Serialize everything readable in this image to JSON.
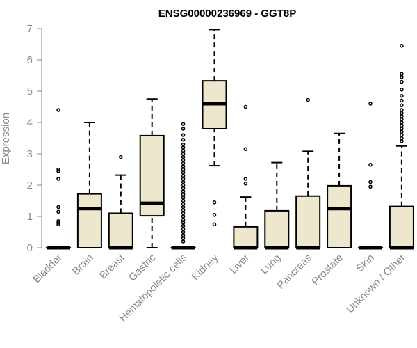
{
  "chart_data": {
    "type": "boxplot",
    "title": "ENSG00000236969 - GGT8P",
    "xlabel": "",
    "ylabel": "Expression",
    "ylim": [
      0,
      7
    ],
    "yticks": [
      "0",
      "1",
      "2",
      "3",
      "4",
      "5",
      "6",
      "7"
    ],
    "grid": false,
    "box_fill": "#EDE7CD",
    "categories": [
      "Bladder",
      "Brain",
      "Breast",
      "Gastric",
      "Hematopoietic cells",
      "Kidney",
      "Liver",
      "Lung",
      "Pancreas",
      "Prostate",
      "Skin",
      "Unknown / Other"
    ],
    "boxes": [
      {
        "min": 0,
        "q1": 0,
        "median": 0,
        "q3": 0,
        "max": 0,
        "outliers": [
          4.4,
          2.5,
          2.45,
          2.2,
          1.3,
          1.15,
          0.85,
          0.8,
          0.75
        ]
      },
      {
        "min": 0,
        "q1": 0,
        "median": 1.25,
        "q3": 1.72,
        "max": 4.0,
        "outliers": []
      },
      {
        "min": 0,
        "q1": 0,
        "median": 0,
        "q3": 1.1,
        "max": 2.32,
        "outliers": [
          2.9
        ]
      },
      {
        "min": 0,
        "q1": 1.02,
        "median": 1.42,
        "q3": 3.58,
        "max": 4.75,
        "outliers": []
      },
      {
        "min": 0,
        "q1": 0,
        "median": 0,
        "q3": 0,
        "max": 0,
        "outliers": [
          3.95,
          3.8,
          3.6,
          3.45,
          3.3,
          3.2,
          3.1,
          3.0,
          2.9,
          2.8,
          2.7,
          2.6,
          2.5,
          2.4,
          2.3,
          2.2,
          2.1,
          2.0,
          1.9,
          1.8,
          1.7,
          1.6,
          1.5,
          1.4,
          1.3,
          1.2,
          1.1,
          1.0,
          0.9,
          0.8,
          0.7,
          0.6,
          0.5,
          0.4,
          0.3,
          0.2
        ]
      },
      {
        "min": 2.62,
        "q1": 3.8,
        "median": 4.6,
        "q3": 5.33,
        "max": 6.97,
        "outliers": [
          1.45,
          1.05,
          0.75
        ]
      },
      {
        "min": 0,
        "q1": 0,
        "median": 0,
        "q3": 0.67,
        "max": 1.62,
        "outliers": [
          4.5,
          3.15,
          2.2,
          2.05
        ]
      },
      {
        "min": 0,
        "q1": 0,
        "median": 0,
        "q3": 1.18,
        "max": 2.72,
        "outliers": []
      },
      {
        "min": 0,
        "q1": 0,
        "median": 0,
        "q3": 1.65,
        "max": 3.08,
        "outliers": [
          4.72
        ]
      },
      {
        "min": 0,
        "q1": 0,
        "median": 1.25,
        "q3": 1.98,
        "max": 3.65,
        "outliers": []
      },
      {
        "min": 0,
        "q1": 0,
        "median": 0,
        "q3": 0,
        "max": 0,
        "outliers": [
          4.6,
          2.65,
          2.1,
          1.95
        ]
      },
      {
        "min": 0,
        "q1": 0,
        "median": 0,
        "q3": 1.32,
        "max": 3.25,
        "outliers": [
          6.45,
          5.55,
          5.45,
          5.3,
          5.05,
          4.85,
          4.7,
          4.55,
          4.4,
          4.3,
          4.2,
          4.1,
          4.0,
          3.9,
          3.8,
          3.7,
          3.6,
          3.5,
          3.4
        ]
      }
    ]
  }
}
